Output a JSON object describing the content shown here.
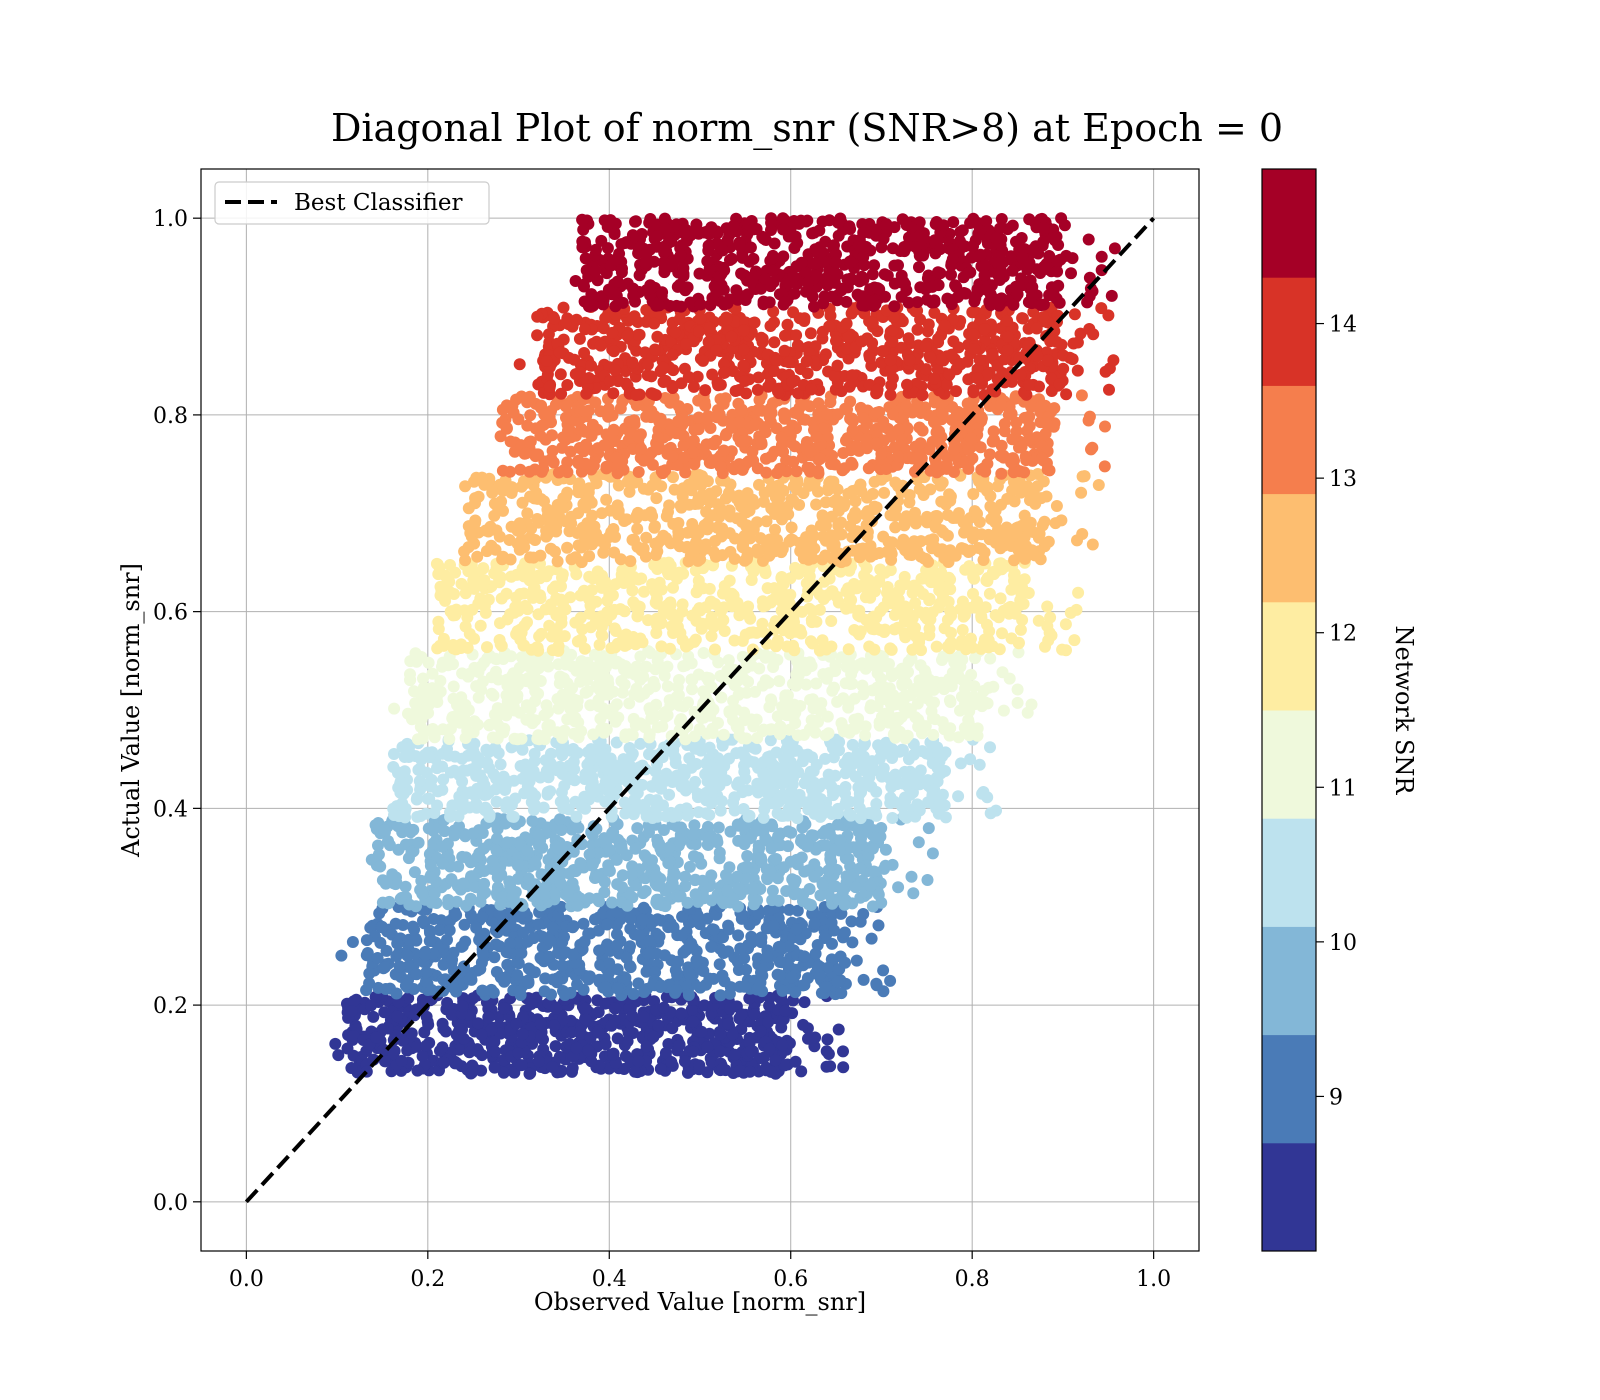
{
  "chart_data": {
    "type": "scatter",
    "title": "Diagonal Plot of norm_snr (SNR>8) at Epoch = 0",
    "xlabel": "Observed Value [norm_snr]",
    "ylabel": "Actual Value [norm_snr]",
    "xlim": [
      -0.05,
      1.05
    ],
    "ylim": [
      -0.05,
      1.05
    ],
    "x_ticks": [
      "0.0",
      "0.2",
      "0.4",
      "0.6",
      "0.8",
      "1.0"
    ],
    "y_ticks": [
      "0.0",
      "0.2",
      "0.4",
      "0.6",
      "0.8",
      "1.0"
    ],
    "grid": true,
    "legend": {
      "placement": "top-left",
      "entries": [
        "Best Classifier"
      ]
    },
    "reference_line": {
      "name": "Best Classifier",
      "style": "dashed",
      "color": "#000000",
      "x": [
        0,
        1
      ],
      "y": [
        0,
        1
      ]
    },
    "colorbar": {
      "label": "Network SNR",
      "range": [
        8,
        15
      ],
      "tick_labels": [
        "9",
        "10",
        "11",
        "12",
        "13",
        "14"
      ],
      "tick_values": [
        9,
        10,
        11,
        12,
        13,
        14
      ],
      "colors": [
        "#313695",
        "#4a7bb7",
        "#83b7d7",
        "#bde2ee",
        "#eff9dc",
        "#feeda2",
        "#fdbe70",
        "#f57e4d",
        "#d83327",
        "#a50026"
      ]
    },
    "bands": [
      {
        "snr": 8.35,
        "y": [
          0.13,
          0.21
        ],
        "x": [
          0.07,
          0.66
        ]
      },
      {
        "snr": 9.05,
        "y": [
          0.21,
          0.3
        ],
        "x": [
          0.09,
          0.72
        ]
      },
      {
        "snr": 9.75,
        "y": [
          0.3,
          0.39
        ],
        "x": [
          0.1,
          0.76
        ]
      },
      {
        "snr": 10.45,
        "y": [
          0.39,
          0.47
        ],
        "x": [
          0.12,
          0.83
        ]
      },
      {
        "snr": 11.15,
        "y": [
          0.47,
          0.56
        ],
        "x": [
          0.14,
          0.87
        ]
      },
      {
        "snr": 11.85,
        "y": [
          0.56,
          0.65
        ],
        "x": [
          0.17,
          0.92
        ]
      },
      {
        "snr": 12.55,
        "y": [
          0.65,
          0.74
        ],
        "x": [
          0.2,
          0.94
        ]
      },
      {
        "snr": 13.25,
        "y": [
          0.74,
          0.82
        ],
        "x": [
          0.24,
          0.95
        ]
      },
      {
        "snr": 13.95,
        "y": [
          0.82,
          0.91
        ],
        "x": [
          0.28,
          0.96
        ]
      },
      {
        "snr": 14.65,
        "y": [
          0.91,
          1.0
        ],
        "x": [
          0.33,
          0.96
        ]
      }
    ],
    "points_per_band": 700
  }
}
